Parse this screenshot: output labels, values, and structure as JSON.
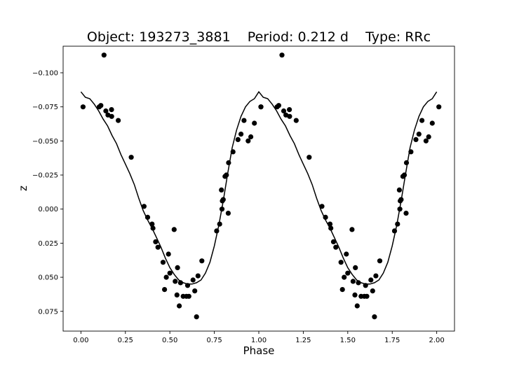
{
  "chart_data": {
    "type": "scatter",
    "title": "Object: 193273_3881    Period: 0.212 d    Type: RRc",
    "xlabel": "Phase",
    "ylabel": "z",
    "xlim": [
      -0.1,
      2.1
    ],
    "ylim": [
      0.0895,
      -0.1195
    ],
    "y_inverted": true,
    "grid": false,
    "x_ticks": [
      0.0,
      0.25,
      0.5,
      0.75,
      1.0,
      1.25,
      1.5,
      1.75,
      2.0
    ],
    "x_tick_labels": [
      "0.00",
      "0.25",
      "0.50",
      "0.75",
      "1.00",
      "1.25",
      "1.50",
      "1.75",
      "2.00"
    ],
    "y_ticks": [
      -0.1,
      -0.075,
      -0.05,
      -0.025,
      0.0,
      0.025,
      0.05,
      0.075
    ],
    "y_tick_labels": [
      "−0.100",
      "−0.075",
      "−0.050",
      "−0.025",
      "0.000",
      "0.025",
      "0.050",
      "0.075"
    ],
    "point_color": "#000000",
    "line_color": "#000000",
    "points": [
      [
        0.012,
        -0.075
      ],
      [
        0.103,
        -0.075
      ],
      [
        0.112,
        -0.076
      ],
      [
        0.13,
        -0.113
      ],
      [
        0.14,
        -0.072
      ],
      [
        0.152,
        -0.069
      ],
      [
        0.173,
        -0.068
      ],
      [
        0.172,
        -0.073
      ],
      [
        0.21,
        -0.065
      ],
      [
        0.283,
        -0.038
      ],
      [
        0.355,
        -0.002
      ],
      [
        0.375,
        0.006
      ],
      [
        0.4,
        0.011
      ],
      [
        0.405,
        0.014
      ],
      [
        0.42,
        0.024
      ],
      [
        0.433,
        0.028
      ],
      [
        0.462,
        0.039
      ],
      [
        0.47,
        0.059
      ],
      [
        0.48,
        0.05
      ],
      [
        0.492,
        0.033
      ],
      [
        0.5,
        0.047
      ],
      [
        0.524,
        0.015
      ],
      [
        0.53,
        0.053
      ],
      [
        0.54,
        0.063
      ],
      [
        0.543,
        0.043
      ],
      [
        0.553,
        0.071
      ],
      [
        0.56,
        0.054
      ],
      [
        0.575,
        0.064
      ],
      [
        0.593,
        0.064
      ],
      [
        0.6,
        0.056
      ],
      [
        0.607,
        0.064
      ],
      [
        0.63,
        0.052
      ],
      [
        0.64,
        0.06
      ],
      [
        0.65,
        0.079
      ],
      [
        0.658,
        0.049
      ],
      [
        0.68,
        0.038
      ],
      [
        0.763,
        0.016
      ],
      [
        0.78,
        0.011
      ],
      [
        0.79,
        -0.014
      ],
      [
        0.793,
        0.0
      ],
      [
        0.795,
        -0.006
      ],
      [
        0.8,
        -0.007
      ],
      [
        0.81,
        -0.024
      ],
      [
        0.818,
        -0.025
      ],
      [
        0.828,
        0.003
      ],
      [
        0.83,
        -0.034
      ],
      [
        0.855,
        -0.042
      ],
      [
        0.883,
        -0.051
      ],
      [
        0.9,
        -0.055
      ],
      [
        0.917,
        -0.065
      ],
      [
        0.94,
        -0.05
      ],
      [
        0.955,
        -0.053
      ],
      [
        0.975,
        -0.063
      ],
      [
        1.012,
        -0.075
      ]
    ],
    "model_curve": [
      [
        0.0,
        -0.086
      ],
      [
        0.025,
        -0.082
      ],
      [
        0.05,
        -0.081
      ],
      [
        0.075,
        -0.077
      ],
      [
        0.1,
        -0.072
      ],
      [
        0.125,
        -0.066
      ],
      [
        0.15,
        -0.061
      ],
      [
        0.175,
        -0.054
      ],
      [
        0.2,
        -0.048
      ],
      [
        0.225,
        -0.04
      ],
      [
        0.25,
        -0.033
      ],
      [
        0.275,
        -0.026
      ],
      [
        0.3,
        -0.018
      ],
      [
        0.325,
        -0.008
      ],
      [
        0.35,
        0.001
      ],
      [
        0.375,
        0.008
      ],
      [
        0.4,
        0.014
      ],
      [
        0.425,
        0.021
      ],
      [
        0.45,
        0.028
      ],
      [
        0.475,
        0.036
      ],
      [
        0.5,
        0.043
      ],
      [
        0.525,
        0.048
      ],
      [
        0.55,
        0.052
      ],
      [
        0.575,
        0.054
      ],
      [
        0.6,
        0.055
      ],
      [
        0.625,
        0.055
      ],
      [
        0.65,
        0.054
      ],
      [
        0.675,
        0.052
      ],
      [
        0.7,
        0.047
      ],
      [
        0.725,
        0.039
      ],
      [
        0.75,
        0.027
      ],
      [
        0.775,
        0.012
      ],
      [
        0.8,
        -0.006
      ],
      [
        0.825,
        -0.026
      ],
      [
        0.85,
        -0.045
      ],
      [
        0.875,
        -0.058
      ],
      [
        0.9,
        -0.068
      ],
      [
        0.925,
        -0.075
      ],
      [
        0.95,
        -0.079
      ],
      [
        0.975,
        -0.081
      ],
      [
        1.0,
        -0.086
      ]
    ]
  }
}
